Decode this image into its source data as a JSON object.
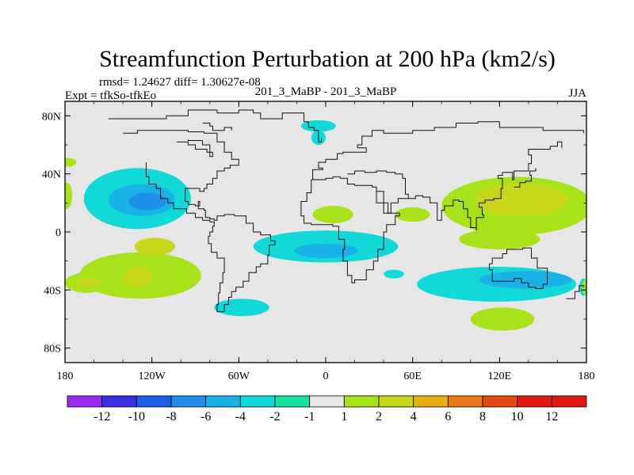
{
  "chart_data": {
    "type": "heatmap",
    "title": "Streamfunction Perturbation at 200 hPa (km2/s)",
    "stats_line": "rmsd= 1.24627 diff= 1.30627e-08",
    "left_label": "Expt = tfkSo-tfkEo",
    "center_label": "201_3_MaBP - 201_3_MaBP",
    "right_label": "JJA",
    "xlim": [
      -180,
      180
    ],
    "ylim": [
      -90,
      90
    ],
    "x_ticks": [
      {
        "value": -180,
        "label": "180"
      },
      {
        "value": -120,
        "label": "120W"
      },
      {
        "value": -60,
        "label": "60W"
      },
      {
        "value": 0,
        "label": "0"
      },
      {
        "value": 60,
        "label": "60E"
      },
      {
        "value": 120,
        "label": "120E"
      },
      {
        "value": 180,
        "label": "180"
      }
    ],
    "y_ticks": [
      {
        "value": 80,
        "label": "80N"
      },
      {
        "value": 40,
        "label": "40N"
      },
      {
        "value": 0,
        "label": "0"
      },
      {
        "value": -40,
        "label": "40S"
      },
      {
        "value": -80,
        "label": "80S"
      }
    ],
    "levels": [
      "-12",
      "-10",
      "-8",
      "-6",
      "-4",
      "-2",
      "-1",
      "1",
      "2",
      "4",
      "6",
      "8",
      "10",
      "12"
    ],
    "colorbar_colors": [
      "#9a2cf0",
      "#3a2fe0",
      "#1f5fe6",
      "#1e8ee8",
      "#18b2e6",
      "#13d8d8",
      "#19e3a2",
      "#e6e6e6",
      "#a7e21a",
      "#c9d51a",
      "#e5b016",
      "#ea7a14",
      "#e44a12",
      "#e01a10"
    ],
    "blobs": [
      {
        "name": "neg-pacific-north",
        "level": -2,
        "rings": [
          {
            "level": -2,
            "cx": -130,
            "cy": 23,
            "rx": 37,
            "ry": 21
          },
          {
            "level": -4,
            "cx": -127,
            "cy": 22,
            "rx": 23,
            "ry": 11
          },
          {
            "level": -6,
            "cx": -123,
            "cy": 21,
            "rx": 13,
            "ry": 6
          }
        ]
      },
      {
        "name": "neg-greenland",
        "level": -2,
        "rings": [
          {
            "level": -2,
            "cx": -5,
            "cy": 73,
            "rx": 12,
            "ry": 4
          },
          {
            "level": -2,
            "cx": -5,
            "cy": 65,
            "rx": 5,
            "ry": 5
          }
        ]
      },
      {
        "name": "neg-atlantic-tropics",
        "level": -2,
        "rings": [
          {
            "level": -2,
            "cx": 0,
            "cy": -10,
            "rx": 50,
            "ry": 11
          },
          {
            "level": -4,
            "cx": 0,
            "cy": -13,
            "rx": 22,
            "ry": 5
          }
        ]
      },
      {
        "name": "neg-south-america",
        "level": -2,
        "rings": [
          {
            "level": -2,
            "cx": -58,
            "cy": -52,
            "rx": 19,
            "ry": 6
          }
        ]
      },
      {
        "name": "neg-atlantic-south",
        "level": -2,
        "rings": [
          {
            "level": -2,
            "cx": 47,
            "cy": -29,
            "rx": 7,
            "ry": 3
          }
        ]
      },
      {
        "name": "neg-indian-south",
        "level": -2,
        "rings": [
          {
            "level": -2,
            "cx": 118,
            "cy": -36,
            "rx": 55,
            "ry": 12
          },
          {
            "level": -4,
            "cx": 138,
            "cy": -33,
            "rx": 32,
            "ry": 6
          }
        ]
      },
      {
        "name": "neg-south-pacific-edge",
        "level": -2,
        "rings": [
          {
            "level": -2,
            "cx": 178,
            "cy": -38,
            "rx": 3,
            "ry": 6
          }
        ]
      },
      {
        "name": "pos-north-pacific-edge",
        "level": 2,
        "rings": [
          {
            "level": 2,
            "cx": -178,
            "cy": 48,
            "rx": 6,
            "ry": 3
          },
          {
            "level": 2,
            "cx": -179,
            "cy": 25,
            "rx": 4,
            "ry": 9
          }
        ]
      },
      {
        "name": "pos-south-pacific",
        "level": 2,
        "rings": [
          {
            "level": 2,
            "cx": -128,
            "cy": -30,
            "rx": 42,
            "ry": 16
          },
          {
            "level": 4,
            "cx": -118,
            "cy": -10,
            "rx": 14,
            "ry": 6
          },
          {
            "level": 4,
            "cx": -130,
            "cy": -31,
            "rx": 10,
            "ry": 7
          },
          {
            "level": 2,
            "cx": -165,
            "cy": -35,
            "rx": 15,
            "ry": 7
          },
          {
            "level": 4,
            "cx": -163,
            "cy": -35,
            "rx": 8,
            "ry": 3
          }
        ]
      },
      {
        "name": "pos-eastern-atlantic",
        "level": 2,
        "rings": [
          {
            "level": 2,
            "cx": 5,
            "cy": 12,
            "rx": 14,
            "ry": 6
          }
        ]
      },
      {
        "name": "pos-africa",
        "level": 2,
        "rings": [
          {
            "level": 2,
            "cx": 60,
            "cy": 12,
            "rx": 12,
            "ry": 5
          }
        ]
      },
      {
        "name": "pos-asia-pacific",
        "level": 2,
        "rings": [
          {
            "level": 2,
            "cx": 132,
            "cy": 18,
            "rx": 52,
            "ry": 20
          },
          {
            "level": 4,
            "cx": 135,
            "cy": 22,
            "rx": 32,
            "ry": 11
          },
          {
            "level": 2,
            "cx": 120,
            "cy": -5,
            "rx": 28,
            "ry": 7
          }
        ]
      },
      {
        "name": "pos-south-indian",
        "level": 2,
        "rings": [
          {
            "level": 2,
            "cx": 122,
            "cy": -60,
            "rx": 22,
            "ry": 8
          }
        ]
      },
      {
        "name": "pos-south-pacific-edge",
        "level": 2,
        "rings": [
          {
            "level": 2,
            "cx": 179,
            "cy": -38,
            "rx": 2,
            "ry": 5
          }
        ]
      }
    ],
    "coastline": [
      [
        [
          -150,
          78
        ],
        [
          -130,
          78
        ],
        [
          -110,
          80
        ],
        [
          -95,
          84
        ],
        [
          -75,
          82
        ],
        [
          -60,
          84
        ],
        [
          -50,
          82
        ],
        [
          -45,
          78
        ],
        [
          -30,
          82
        ],
        [
          -15,
          76
        ],
        [
          -12,
          72
        ],
        [
          -8,
          70
        ],
        [
          -5,
          62
        ],
        [
          -3,
          65
        ]
      ],
      [
        [
          -140,
          68
        ],
        [
          -130,
          70
        ],
        [
          -118,
          70
        ],
        [
          -105,
          70
        ],
        [
          -95,
          69
        ],
        [
          -84,
          68
        ],
        [
          -75,
          62
        ],
        [
          -70,
          55
        ],
        [
          -65,
          50
        ],
        [
          -60,
          46
        ],
        [
          -66,
          44
        ],
        [
          -70,
          42
        ],
        [
          -75,
          37
        ],
        [
          -78,
          33
        ],
        [
          -82,
          30
        ],
        [
          -84,
          28
        ],
        [
          -87,
          30
        ],
        [
          -97,
          26
        ],
        [
          -97,
          21
        ],
        [
          -95,
          19
        ],
        [
          -90,
          18
        ],
        [
          -87,
          21
        ],
        [
          -88,
          16
        ],
        [
          -84,
          15
        ],
        [
          -83,
          10
        ],
        [
          -80,
          9
        ],
        [
          -77,
          8
        ],
        [
          -75,
          11
        ],
        [
          -70,
          12
        ],
        [
          -63,
          11
        ],
        [
          -55,
          6
        ],
        [
          -50,
          0
        ],
        [
          -45,
          -2
        ],
        [
          -38,
          -6
        ],
        [
          -35,
          -9
        ],
        [
          -39,
          -16
        ],
        [
          -40,
          -22
        ],
        [
          -45,
          -24
        ],
        [
          -48,
          -28
        ],
        [
          -53,
          -34
        ],
        [
          -57,
          -38
        ],
        [
          -62,
          -41
        ],
        [
          -65,
          -45
        ],
        [
          -67,
          -50
        ],
        [
          -70,
          -55
        ],
        [
          -75,
          -50
        ],
        [
          -74,
          -42
        ],
        [
          -73,
          -35
        ],
        [
          -71,
          -28
        ],
        [
          -70,
          -18
        ],
        [
          -75,
          -14
        ],
        [
          -79,
          -8
        ],
        [
          -81,
          -3
        ],
        [
          -80,
          0
        ],
        [
          -78,
          4
        ],
        [
          -77,
          7
        ],
        [
          -80,
          8
        ],
        [
          -85,
          10
        ],
        [
          -90,
          13
        ],
        [
          -96,
          16
        ],
        [
          -105,
          20
        ],
        [
          -109,
          23
        ],
        [
          -114,
          30
        ],
        [
          -117,
          33
        ],
        [
          -122,
          38
        ],
        [
          -124,
          44
        ],
        [
          -124,
          48
        ]
      ],
      [
        [
          -103,
          62
        ],
        [
          -95,
          60
        ],
        [
          -90,
          57
        ],
        [
          -82,
          55
        ],
        [
          -78,
          52
        ],
        [
          -80,
          60
        ],
        [
          -85,
          63
        ],
        [
          -95,
          64
        ]
      ],
      [
        [
          -85,
          75
        ],
        [
          -80,
          73
        ],
        [
          -78,
          70
        ],
        [
          -70,
          72
        ],
        [
          -65,
          70
        ]
      ],
      [
        [
          -10,
          36
        ],
        [
          -6,
          36
        ],
        [
          0,
          37
        ],
        [
          5,
          38
        ],
        [
          10,
          37
        ],
        [
          15,
          33
        ],
        [
          20,
          32
        ],
        [
          25,
          32
        ],
        [
          32,
          31
        ],
        [
          35,
          28
        ],
        [
          40,
          20
        ],
        [
          43,
          13
        ],
        [
          51,
          11
        ],
        [
          48,
          5
        ],
        [
          42,
          0
        ],
        [
          40,
          -5
        ],
        [
          40,
          -12
        ],
        [
          36,
          -20
        ],
        [
          33,
          -26
        ],
        [
          28,
          -33
        ],
        [
          20,
          -35
        ],
        [
          18,
          -30
        ],
        [
          15,
          -20
        ],
        [
          12,
          -12
        ],
        [
          13,
          -5
        ],
        [
          9,
          0
        ],
        [
          9,
          4
        ],
        [
          5,
          5
        ],
        [
          -5,
          5
        ],
        [
          -10,
          6
        ],
        [
          -15,
          11
        ],
        [
          -17,
          15
        ],
        [
          -17,
          21
        ],
        [
          -13,
          27
        ],
        [
          -10,
          30
        ],
        [
          -10,
          36
        ]
      ],
      [
        [
          -10,
          36
        ],
        [
          -9,
          43
        ],
        [
          -2,
          44
        ],
        [
          -5,
          48
        ],
        [
          0,
          50
        ],
        [
          8,
          54
        ],
        [
          12,
          55
        ],
        [
          20,
          55
        ],
        [
          28,
          58
        ],
        [
          22,
          60
        ],
        [
          25,
          66
        ],
        [
          32,
          70
        ],
        [
          40,
          68
        ],
        [
          50,
          68
        ],
        [
          60,
          70
        ],
        [
          75,
          72
        ],
        [
          90,
          75
        ],
        [
          105,
          76
        ],
        [
          120,
          72
        ],
        [
          130,
          72
        ],
        [
          140,
          72
        ],
        [
          150,
          70
        ],
        [
          160,
          70
        ],
        [
          170,
          70
        ],
        [
          178,
          68
        ]
      ],
      [
        [
          15,
          40
        ],
        [
          20,
          42
        ],
        [
          27,
          41
        ],
        [
          35,
          42
        ],
        [
          42,
          41
        ],
        [
          48,
          40
        ],
        [
          53,
          37
        ],
        [
          55,
          26
        ],
        [
          57,
          23
        ],
        [
          50,
          20
        ],
        [
          45,
          13
        ],
        [
          40,
          20
        ],
        [
          35,
          28
        ]
      ],
      [
        [
          57,
          23
        ],
        [
          62,
          25
        ],
        [
          67,
          24
        ],
        [
          72,
          20
        ],
        [
          77,
          8
        ],
        [
          80,
          15
        ],
        [
          82,
          18
        ],
        [
          88,
          22
        ],
        [
          92,
          21
        ],
        [
          95,
          16
        ],
        [
          98,
          10
        ],
        [
          100,
          3
        ],
        [
          104,
          1
        ],
        [
          104,
          10
        ],
        [
          109,
          12
        ],
        [
          108,
          17
        ],
        [
          106,
          20
        ],
        [
          110,
          22
        ],
        [
          116,
          23
        ],
        [
          121,
          30
        ],
        [
          122,
          37
        ],
        [
          119,
          39
        ],
        [
          122,
          41
        ],
        [
          129,
          36
        ],
        [
          130,
          42
        ],
        [
          140,
          47
        ],
        [
          142,
          53
        ],
        [
          140,
          57
        ],
        [
          155,
          59
        ],
        [
          160,
          62
        ],
        [
          163,
          58
        ]
      ],
      [
        [
          115,
          -22
        ],
        [
          113,
          -26
        ],
        [
          115,
          -34
        ],
        [
          123,
          -34
        ],
        [
          130,
          -32
        ],
        [
          135,
          -35
        ],
        [
          140,
          -38
        ],
        [
          145,
          -39
        ],
        [
          150,
          -36
        ],
        [
          153,
          -30
        ],
        [
          153,
          -25
        ],
        [
          146,
          -18
        ],
        [
          142,
          -11
        ],
        [
          136,
          -12
        ],
        [
          131,
          -12
        ],
        [
          125,
          -15
        ],
        [
          122,
          -18
        ],
        [
          115,
          -22
        ]
      ],
      [
        [
          130,
          31
        ],
        [
          134,
          34
        ],
        [
          138,
          35
        ],
        [
          142,
          39
        ],
        [
          141,
          42
        ],
        [
          145,
          44
        ]
      ],
      [
        [
          166,
          -46
        ],
        [
          172,
          -41
        ],
        [
          175,
          -37
        ],
        [
          178,
          -38
        ]
      ]
    ]
  }
}
